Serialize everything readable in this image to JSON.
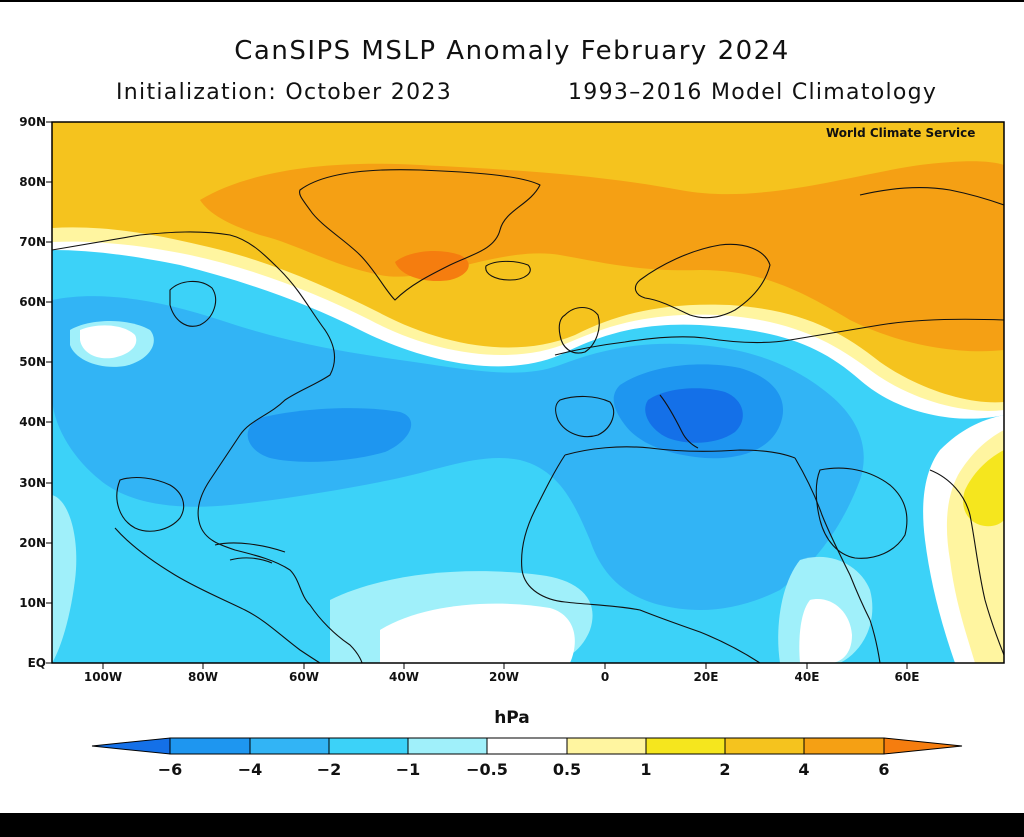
{
  "title": "CanSIPS MSLP Anomaly February 2024",
  "subtitle_left": "Initialization: October 2023",
  "subtitle_right": "1993–2016 Model Climatology",
  "credit": "World Climate Service",
  "lat_labels": [
    "90N",
    "80N",
    "70N",
    "60N",
    "50N",
    "40N",
    "30N",
    "20N",
    "10N",
    "EQ"
  ],
  "lon_labels": [
    "100W",
    "80W",
    "60W",
    "40W",
    "20W",
    "0",
    "20E",
    "40E",
    "60E"
  ],
  "colorbar": {
    "units": "hPa",
    "tick_labels": [
      "−6",
      "−4",
      "−2",
      "−1",
      "−0.5",
      "0.5",
      "1",
      "2",
      "4",
      "6"
    ],
    "colors": [
      "#1470e8",
      "#1e96f0",
      "#32b4f5",
      "#3cd2f8",
      "#a0f0fa",
      "#ffffff",
      "#fff5a0",
      "#f5e61e",
      "#f5c31e",
      "#f5a014",
      "#f57d0f"
    ]
  }
}
